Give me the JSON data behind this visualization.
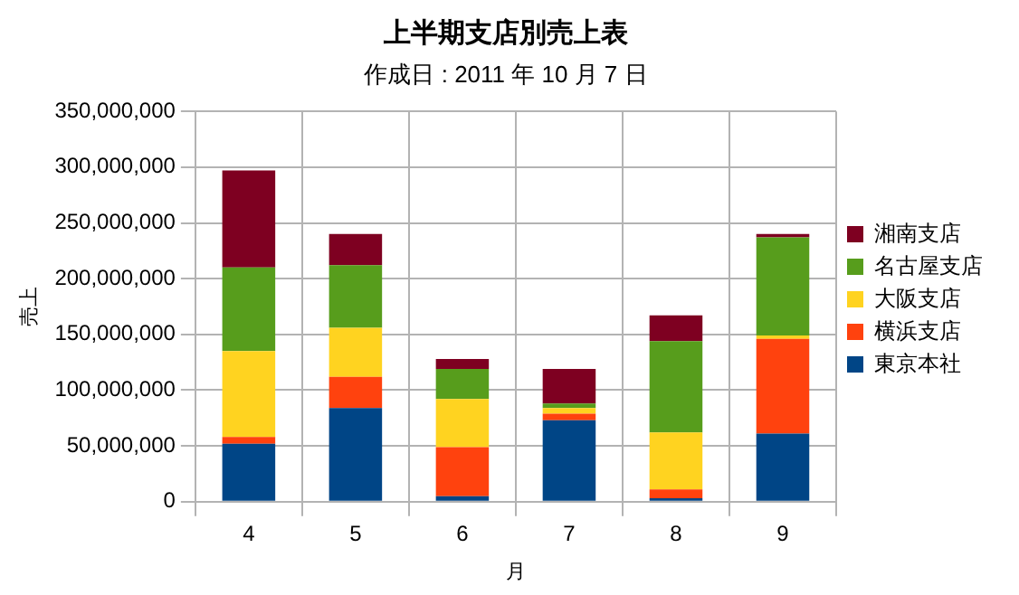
{
  "chart_data": {
    "type": "bar",
    "title": "上半期支店別売上表",
    "subtitle": "作成日 : 2011 年 10 月 7 日",
    "xlabel": "月",
    "ylabel": "売上",
    "categories": [
      "4",
      "5",
      "6",
      "7",
      "8",
      "9"
    ],
    "series": [
      {
        "name": "東京本社",
        "color": "#004586",
        "values": [
          52000000,
          84000000,
          5000000,
          73000000,
          3000000,
          61000000
        ]
      },
      {
        "name": "横浜支店",
        "color": "#ff420e",
        "values": [
          6000000,
          28000000,
          44000000,
          6000000,
          8000000,
          85000000
        ]
      },
      {
        "name": "大阪支店",
        "color": "#ffd320",
        "values": [
          77000000,
          44000000,
          43000000,
          5000000,
          51000000,
          3000000
        ]
      },
      {
        "name": "名古屋支店",
        "color": "#579d1c",
        "values": [
          75000000,
          56000000,
          27000000,
          4000000,
          82000000,
          88000000
        ]
      },
      {
        "name": "湘南支店",
        "color": "#7e0021",
        "values": [
          87000000,
          28000000,
          9000000,
          31000000,
          23000000,
          3000000
        ]
      }
    ],
    "stacked": true,
    "ylim": [
      0,
      350000000
    ],
    "yticks": [
      {
        "value": 0,
        "label": "0"
      },
      {
        "value": 50000000,
        "label": "50,000,000"
      },
      {
        "value": 100000000,
        "label": "100,000,000"
      },
      {
        "value": 150000000,
        "label": "150,000,000"
      },
      {
        "value": 200000000,
        "label": "200,000,000"
      },
      {
        "value": 250000000,
        "label": "250,000,000"
      },
      {
        "value": 300000000,
        "label": "300,000,000"
      },
      {
        "value": 350000000,
        "label": "350,000,000"
      }
    ],
    "grid": true,
    "legend": "right"
  }
}
